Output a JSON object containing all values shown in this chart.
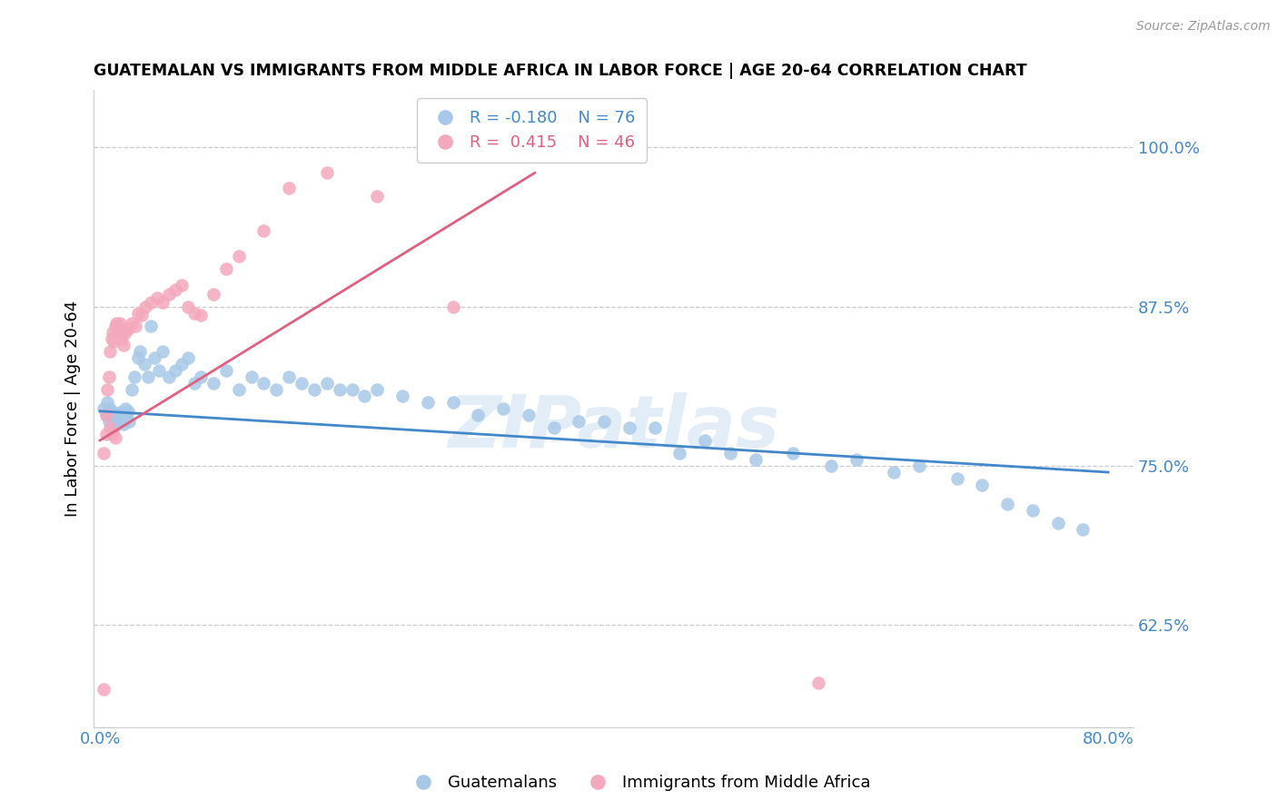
{
  "title": "GUATEMALAN VS IMMIGRANTS FROM MIDDLE AFRICA IN LABOR FORCE | AGE 20-64 CORRELATION CHART",
  "source": "Source: ZipAtlas.com",
  "ylabel": "In Labor Force | Age 20-64",
  "right_ytick_labels": [
    "100.0%",
    "87.5%",
    "75.0%",
    "62.5%"
  ],
  "right_ytick_values": [
    1.0,
    0.875,
    0.75,
    0.625
  ],
  "xlim": [
    -0.005,
    0.82
  ],
  "ylim": [
    0.545,
    1.045
  ],
  "xtick_values": [
    0.0,
    0.1,
    0.2,
    0.3,
    0.4,
    0.5,
    0.6,
    0.7,
    0.8
  ],
  "xtick_labels": [
    "0.0%",
    "",
    "",
    "",
    "",
    "",
    "",
    "",
    "80.0%"
  ],
  "blue_color": "#a8c8e8",
  "pink_color": "#f4a8bc",
  "blue_line_color": "#4488cc",
  "pink_line_color": "#e06080",
  "legend_blue_R": "-0.180",
  "legend_blue_N": "76",
  "legend_pink_R": "0.415",
  "legend_pink_N": "46",
  "watermark": "ZIPatlas",
  "blue_scatter_x": [
    0.003,
    0.005,
    0.006,
    0.007,
    0.008,
    0.009,
    0.01,
    0.011,
    0.012,
    0.013,
    0.014,
    0.015,
    0.016,
    0.017,
    0.018,
    0.019,
    0.02,
    0.021,
    0.022,
    0.023,
    0.025,
    0.027,
    0.03,
    0.032,
    0.035,
    0.038,
    0.04,
    0.043,
    0.047,
    0.05,
    0.055,
    0.06,
    0.065,
    0.07,
    0.075,
    0.08,
    0.09,
    0.1,
    0.11,
    0.12,
    0.13,
    0.14,
    0.15,
    0.16,
    0.17,
    0.18,
    0.19,
    0.2,
    0.21,
    0.22,
    0.24,
    0.26,
    0.28,
    0.3,
    0.32,
    0.34,
    0.36,
    0.38,
    0.4,
    0.42,
    0.44,
    0.46,
    0.48,
    0.5,
    0.52,
    0.55,
    0.58,
    0.6,
    0.63,
    0.65,
    0.68,
    0.7,
    0.72,
    0.74,
    0.76,
    0.78
  ],
  "blue_scatter_y": [
    0.795,
    0.79,
    0.8,
    0.785,
    0.795,
    0.788,
    0.792,
    0.78,
    0.783,
    0.785,
    0.79,
    0.788,
    0.792,
    0.785,
    0.79,
    0.783,
    0.795,
    0.788,
    0.793,
    0.785,
    0.81,
    0.82,
    0.835,
    0.84,
    0.83,
    0.82,
    0.86,
    0.835,
    0.825,
    0.84,
    0.82,
    0.825,
    0.83,
    0.835,
    0.815,
    0.82,
    0.815,
    0.825,
    0.81,
    0.82,
    0.815,
    0.81,
    0.82,
    0.815,
    0.81,
    0.815,
    0.81,
    0.81,
    0.805,
    0.81,
    0.805,
    0.8,
    0.8,
    0.79,
    0.795,
    0.79,
    0.78,
    0.785,
    0.785,
    0.78,
    0.78,
    0.76,
    0.77,
    0.76,
    0.755,
    0.76,
    0.75,
    0.755,
    0.745,
    0.75,
    0.74,
    0.735,
    0.72,
    0.715,
    0.705,
    0.7
  ],
  "pink_scatter_x": [
    0.003,
    0.005,
    0.006,
    0.007,
    0.008,
    0.009,
    0.01,
    0.011,
    0.012,
    0.013,
    0.014,
    0.015,
    0.016,
    0.017,
    0.018,
    0.019,
    0.02,
    0.022,
    0.025,
    0.028,
    0.03,
    0.033,
    0.036,
    0.04,
    0.045,
    0.05,
    0.055,
    0.06,
    0.065,
    0.07,
    0.075,
    0.08,
    0.09,
    0.1,
    0.11,
    0.13,
    0.15,
    0.18,
    0.22,
    0.28,
    0.003,
    0.005,
    0.008,
    0.01,
    0.012,
    0.57
  ],
  "pink_scatter_y": [
    0.575,
    0.79,
    0.81,
    0.82,
    0.84,
    0.85,
    0.855,
    0.848,
    0.86,
    0.862,
    0.855,
    0.858,
    0.862,
    0.85,
    0.855,
    0.845,
    0.855,
    0.858,
    0.862,
    0.86,
    0.87,
    0.868,
    0.875,
    0.878,
    0.882,
    0.878,
    0.885,
    0.888,
    0.892,
    0.875,
    0.87,
    0.868,
    0.885,
    0.905,
    0.915,
    0.935,
    0.968,
    0.98,
    0.962,
    0.875,
    0.76,
    0.775,
    0.78,
    0.775,
    0.772,
    0.58
  ],
  "blue_trend_x": [
    0.0,
    0.8
  ],
  "blue_trend_y": [
    0.793,
    0.745
  ],
  "pink_trend_x": [
    0.0,
    0.345
  ],
  "pink_trend_y": [
    0.77,
    0.98
  ]
}
